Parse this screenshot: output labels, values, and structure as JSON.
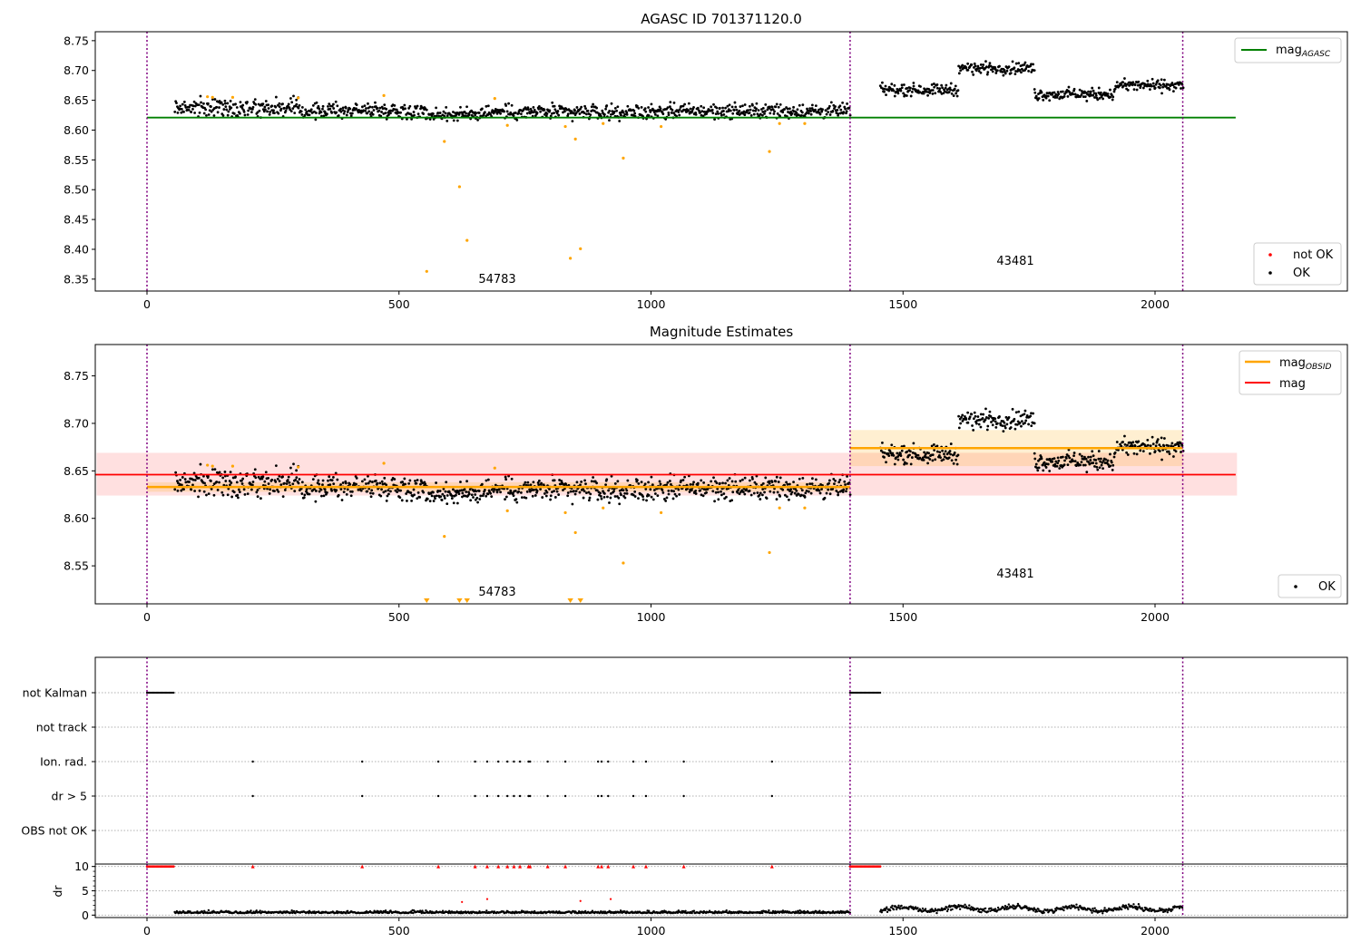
{
  "colors": {
    "ok": "#000000",
    "not_ok": "#ff0000",
    "excluded": "#ffa500",
    "mag_agasc": "#008000",
    "mag": "#ff0000",
    "mag_obsid": "#ffa500",
    "obs_boundary": "#800080"
  },
  "chart_data": [
    {
      "type": "scatter",
      "title": "AGASC ID 701371120.0",
      "xlabel": "",
      "ylabel": "",
      "xlim": [
        -100,
        2390
      ],
      "ylim": [
        8.33,
        8.765
      ],
      "x_ticks": [
        "0",
        "500",
        "1000",
        "1500",
        "2000"
      ],
      "y_ticks": [
        "8.35",
        "8.40",
        "8.45",
        "8.50",
        "8.55",
        "8.60",
        "8.65",
        "8.70",
        "8.75"
      ],
      "grid": false,
      "legends": [
        {
          "placement": "upper right",
          "entries": [
            {
              "label": "mag",
              "sub": "AGASC"
            }
          ]
        },
        {
          "placement": "lower right",
          "entries": [
            {
              "label": "not OK"
            },
            {
              "label": "OK"
            }
          ]
        }
      ],
      "annotations": [
        "54783",
        "43481"
      ],
      "observation_boundaries": [
        0,
        1395,
        2055
      ],
      "reference_lines": [
        {
          "name": "mag_AGASC",
          "y": 8.621,
          "x": [
            0,
            2160
          ]
        }
      ],
      "series": [
        {
          "name": "OK",
          "approx_profile": [
            {
              "x": [
                55,
                300
              ],
              "y": 8.638,
              "spread": 0.012
            },
            {
              "x": [
                300,
                550
              ],
              "y": 8.633,
              "spread": 0.01
            },
            {
              "x": [
                550,
                650
              ],
              "y": 8.626,
              "spread": 0.01
            },
            {
              "x": [
                650,
                1000
              ],
              "y": 8.63,
              "spread": 0.01
            },
            {
              "x": [
                1000,
                1395
              ],
              "y": 8.632,
              "spread": 0.01
            },
            {
              "x": [
                1455,
                1610
              ],
              "y": 8.668,
              "spread": 0.008
            },
            {
              "x": [
                1610,
                1760
              ],
              "y": 8.704,
              "spread": 0.008
            },
            {
              "x": [
                1760,
                1920
              ],
              "y": 8.66,
              "spread": 0.008
            },
            {
              "x": [
                1920,
                2055
              ],
              "y": 8.675,
              "spread": 0.008
            }
          ]
        },
        {
          "name": "excluded",
          "x": [
            120,
            130,
            170,
            300,
            470,
            555,
            590,
            620,
            635,
            690,
            715,
            830,
            840,
            850,
            860,
            905,
            945,
            1020,
            1235,
            1255,
            1305
          ],
          "y": [
            8.656,
            8.655,
            8.655,
            8.654,
            8.658,
            8.363,
            8.581,
            8.505,
            8.415,
            8.653,
            8.608,
            8.606,
            8.385,
            8.585,
            8.401,
            8.611,
            8.553,
            8.606,
            8.564,
            8.611,
            8.611
          ]
        }
      ]
    },
    {
      "type": "scatter",
      "title": "Magnitude Estimates",
      "xlabel": "",
      "ylabel": "",
      "xlim": [
        -100,
        2390
      ],
      "ylim": [
        8.51,
        8.783
      ],
      "x_ticks": [
        "0",
        "500",
        "1000",
        "1500",
        "2000"
      ],
      "y_ticks": [
        "8.55",
        "8.60",
        "8.65",
        "8.70",
        "8.75"
      ],
      "grid": false,
      "legends": [
        {
          "placement": "upper right",
          "entries": [
            {
              "label": "mag",
              "sub": "OBSID"
            },
            {
              "label": "mag"
            }
          ]
        },
        {
          "placement": "lower right",
          "entries": [
            {
              "label": "OK"
            }
          ]
        }
      ],
      "annotations": [
        "54783",
        "43481"
      ],
      "observation_boundaries": [
        0,
        1395,
        2055
      ],
      "reference_lines": [
        {
          "name": "mag",
          "y": 8.646,
          "band": [
            8.624,
            8.669
          ],
          "x": [
            -100,
            2160
          ]
        },
        {
          "name": "mag_OBSID (54783)",
          "y": 8.633,
          "band": [
            8.628,
            8.638
          ],
          "x": [
            0,
            1395
          ]
        },
        {
          "name": "mag_OBSID (43481)",
          "y": 8.674,
          "band": [
            8.655,
            8.693
          ],
          "x": [
            1395,
            2055
          ]
        }
      ],
      "series": [
        {
          "name": "OK",
          "approx_profile": "same points as panel 1"
        },
        {
          "name": "excluded below axis",
          "x": [
            555,
            620,
            635,
            840,
            860
          ]
        }
      ]
    },
    {
      "type": "scatter",
      "title": "",
      "xlabel": "",
      "ylabel": "",
      "xlim": [
        -100,
        2390
      ],
      "x_ticks": [],
      "categories": [
        "not Kalman",
        "not track",
        "Ion. rad.",
        "dr > 5",
        "OBS not OK"
      ],
      "grid": true,
      "observation_boundaries": [
        0,
        1395,
        2055
      ],
      "flags": {
        "not Kalman": [
          [
            0,
            55
          ],
          [
            1395,
            1455
          ]
        ],
        "not track": [],
        "Ion. rad.": [
          210,
          427,
          578,
          651,
          675,
          697,
          715,
          728,
          740,
          757,
          760,
          795,
          830,
          895,
          902,
          915,
          965,
          990,
          1065,
          1240
        ],
        "dr > 5": [
          210,
          427,
          578,
          651,
          675,
          697,
          715,
          728,
          740,
          757,
          760,
          795,
          830,
          895,
          902,
          915,
          965,
          990,
          1065,
          1240
        ],
        "OBS not OK": []
      }
    },
    {
      "type": "scatter",
      "title": "",
      "xlabel": "",
      "ylabel": "dr",
      "xlim": [
        -100,
        2390
      ],
      "ylim": [
        -0.5,
        10.5
      ],
      "x_ticks": [
        "0",
        "500",
        "1000",
        "1500",
        "2000"
      ],
      "y_ticks": [
        "0",
        "5",
        "10"
      ],
      "grid": true,
      "observation_boundaries": [
        0,
        1395,
        2055
      ],
      "series": [
        {
          "name": "dr (OK)",
          "approx_profile": [
            {
              "x": [
                55,
                1395
              ],
              "y": 0.4,
              "spread": 0.35
            },
            {
              "x": [
                1455,
                2055
              ],
              "y": 1.3,
              "spread": 0.7
            }
          ]
        },
        {
          "name": "dr clipped at 10",
          "x": [
            210,
            427,
            578,
            651,
            675,
            697,
            715,
            728,
            740,
            757,
            760,
            795,
            830,
            895,
            902,
            915,
            965,
            990,
            1065,
            1240
          ],
          "y": 10
        },
        {
          "name": "dr clipped at 10 (not Kalman)",
          "x": [
            [
              0,
              55
            ],
            [
              1395,
              1455
            ]
          ],
          "y": 10
        },
        {
          "name": "dr outliers",
          "x": [
            625,
            675,
            860,
            920
          ],
          "y": [
            2.7,
            3.3,
            2.9,
            3.3
          ]
        }
      ]
    }
  ]
}
